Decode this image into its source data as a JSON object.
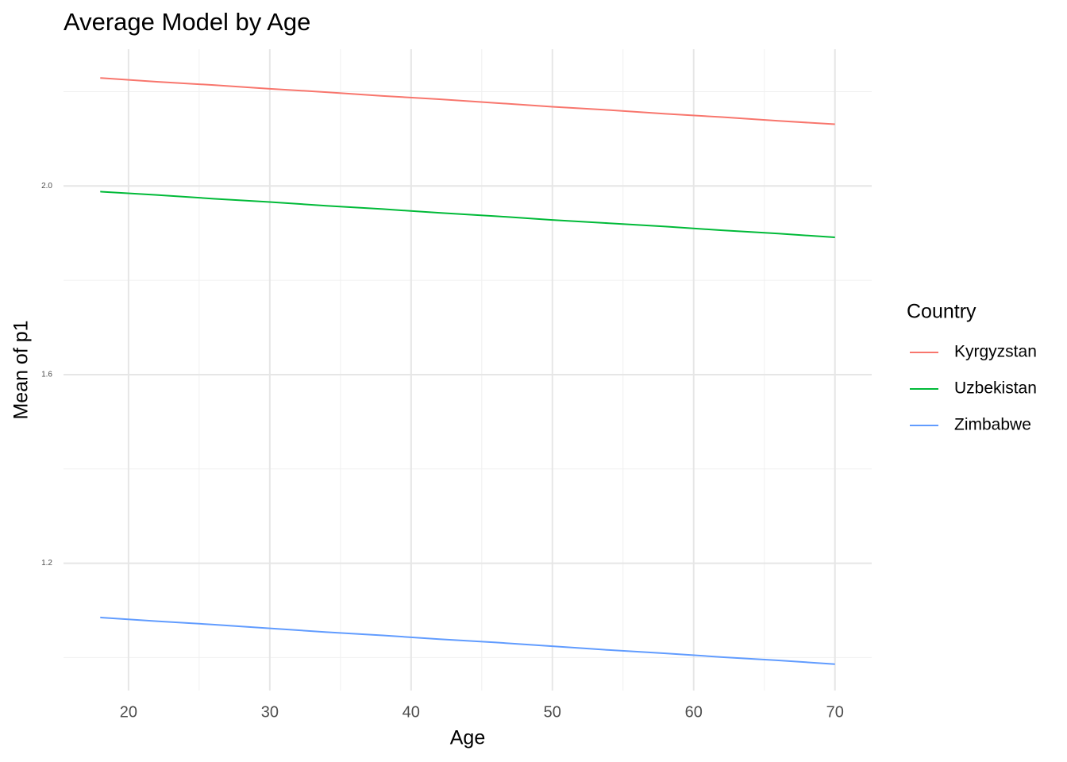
{
  "chart_data": {
    "type": "line",
    "title": "Average Model by Age",
    "x_label": "Age",
    "y_label": "Mean of p1",
    "legend_title": "Country",
    "legend_position": "right",
    "x": [
      18,
      22,
      26,
      30,
      34,
      38,
      42,
      46,
      50,
      54,
      58,
      62,
      66,
      70
    ],
    "series": [
      {
        "name": "Kyrgyzstan",
        "color": "#F8766D",
        "values": [
          2.229,
          2.221,
          2.214,
          2.206,
          2.199,
          2.191,
          2.184,
          2.176,
          2.168,
          2.161,
          2.153,
          2.146,
          2.138,
          2.131
        ]
      },
      {
        "name": "Uzbekistan",
        "color": "#00BA38",
        "values": [
          1.988,
          1.981,
          1.973,
          1.966,
          1.958,
          1.951,
          1.943,
          1.936,
          1.928,
          1.921,
          1.914,
          1.906,
          1.899,
          1.891
        ]
      },
      {
        "name": "Zimbabwe",
        "color": "#619CFF",
        "values": [
          1.085,
          1.077,
          1.07,
          1.062,
          1.054,
          1.047,
          1.039,
          1.032,
          1.024,
          1.016,
          1.009,
          1.001,
          0.994,
          0.986
        ]
      }
    ],
    "xlim": [
      15.4,
      72.6
    ],
    "xticks": [
      20,
      30,
      40,
      50,
      60,
      70
    ],
    "ylim": [
      0.93,
      2.29
    ],
    "yticks": [
      {
        "value": 1.2,
        "label": "1.2"
      },
      {
        "value": 1.6,
        "label": "1.6"
      },
      {
        "value": 2.0,
        "label": "2.0"
      }
    ],
    "grid": true
  }
}
